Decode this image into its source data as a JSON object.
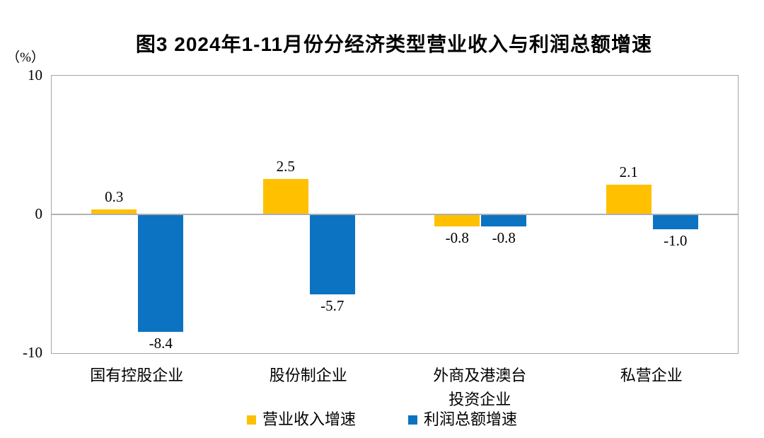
{
  "title": "图3 2024年1-11月份分经济类型营业收入与利润总额增速",
  "y_axis": {
    "unit_label": "（%）",
    "ticks": [
      "10",
      "0",
      "-10"
    ],
    "max": 10,
    "min": -10
  },
  "legend": {
    "items": [
      {
        "label": "营业收入增速",
        "color": "#FFC000"
      },
      {
        "label": "利润总额增速",
        "color": "#0B73C2"
      }
    ]
  },
  "chart_data": {
    "type": "bar",
    "title": "图3 2024年1-11月份分经济类型营业收入与利润总额增速",
    "categories": [
      "国有控股企业",
      "股份制企业",
      "外商及港澳台投资企业",
      "私营企业"
    ],
    "categories_display": [
      "国有控股企业",
      "股份制企业",
      "外商及港澳台\n投资企业",
      "私营企业"
    ],
    "series": [
      {
        "name": "营业收入增速",
        "color": "#FFC000",
        "values": [
          0.3,
          2.5,
          -0.8,
          2.1
        ],
        "labels": [
          "0.3",
          "2.5",
          "-0.8",
          "2.1"
        ]
      },
      {
        "name": "利润总额增速",
        "color": "#0B73C2",
        "values": [
          -8.4,
          -5.7,
          -0.8,
          -1.0
        ],
        "labels": [
          "-8.4",
          "-5.7",
          "-0.8",
          "-1.0"
        ]
      }
    ],
    "ylabel": "（%）",
    "ylim": [
      -10,
      10
    ],
    "grid": "zero-line-only",
    "legend_position": "bottom"
  }
}
